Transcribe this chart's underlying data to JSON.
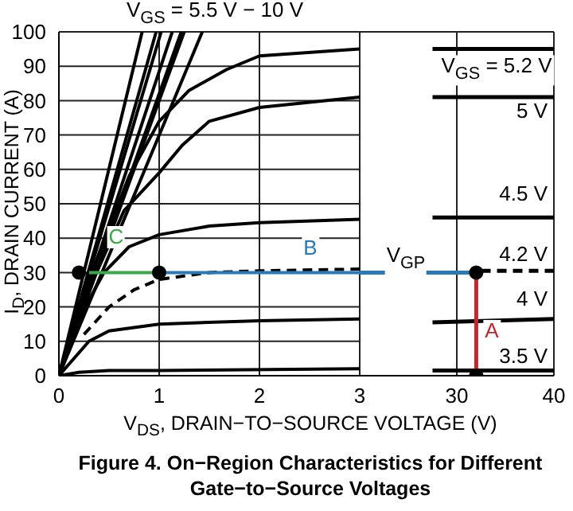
{
  "chart_data": [
    {
      "type": "line",
      "title": "Figure 4. On−Region Characteristics for Different Gate−to−Source Voltages",
      "xlabel": "V$_{DS}$, DRAIN−TO−SOURCE VOLTAGE (V)",
      "ylabel": "I$_{D}$, DRAIN CURRENT (A)",
      "annotations": [
        "V$_{GS}$ = 5.5 V − 10 V",
        "B",
        "C"
      ],
      "xlim": [
        0,
        3
      ],
      "xticks": [
        0,
        1,
        2,
        3
      ],
      "ylim": [
        0,
        100
      ],
      "yticks": [
        0,
        10,
        20,
        30,
        40,
        50,
        60,
        70,
        80,
        90,
        100
      ],
      "grid": true,
      "series": [
        {
          "color": "#000000",
          "x": [
            0,
            0.83
          ],
          "values": [
            0,
            100
          ]
        },
        {
          "color": "#000000",
          "x": [
            0,
            0.97
          ],
          "values": [
            0,
            100
          ]
        },
        {
          "color": "#000000",
          "x": [
            0,
            1.02
          ],
          "values": [
            0,
            100
          ]
        },
        {
          "color": "#000000",
          "x": [
            0,
            1.13
          ],
          "values": [
            0,
            100
          ]
        },
        {
          "color": "#000000",
          "x": [
            0,
            1.22
          ],
          "values": [
            0,
            100
          ]
        },
        {
          "color": "#000000",
          "x": [
            0,
            1.25
          ],
          "values": [
            0,
            100
          ]
        },
        {
          "color": "#000000",
          "x": [
            0,
            1.43
          ],
          "values": [
            0,
            100
          ]
        },
        {
          "color": "#000000",
          "x": [
            0,
            0.3,
            0.7,
            1,
            1.3,
            1.67,
            2,
            3
          ],
          "values": [
            0,
            28,
            58,
            74,
            83,
            89,
            93,
            95
          ]
        },
        {
          "color": "#000000",
          "x": [
            0,
            0.3,
            0.65,
            1,
            1.23,
            1.5,
            2,
            3
          ],
          "values": [
            0,
            25,
            48,
            59,
            67,
            74,
            78,
            81
          ]
        },
        {
          "color": "#000000",
          "x": [
            0,
            0.2,
            0.3,
            0.45,
            0.7,
            1,
            1.5,
            2,
            3
          ],
          "values": [
            0,
            15,
            22,
            30,
            37.5,
            41,
            43.5,
            44.5,
            45.5
          ]
        },
        {
          "color": "#000000",
          "line_style": "dashed",
          "x": [
            0.25,
            0.5,
            0.75,
            1,
            1.5,
            2,
            3
          ],
          "values": [
            12,
            20,
            25,
            28,
            30,
            30.5,
            31
          ]
        },
        {
          "color": "#000000",
          "x": [
            0,
            0.3,
            0.5,
            1,
            2,
            3
          ],
          "values": [
            0,
            10,
            13,
            15,
            16,
            16.5
          ]
        },
        {
          "color": "#000000",
          "x": [
            0,
            0.2,
            0.5,
            1,
            3
          ],
          "values": [
            0,
            1,
            1.5,
            1.5,
            2
          ]
        },
        {
          "color": "#2a7ab8",
          "x": [
            3,
            1
          ],
          "values": [
            30,
            30
          ]
        },
        {
          "color": "#3aa84a",
          "x": [
            1,
            0.3
          ],
          "values": [
            30,
            30
          ]
        },
        {
          "type": "scatter",
          "color": "#000000",
          "x": [
            0.2,
            1
          ],
          "values": [
            30,
            30
          ]
        }
      ]
    },
    {
      "type": "line",
      "annotations": [
        "V$_{GS}$ = 5.2 V",
        "5 V",
        "4.5 V",
        "4.2 V",
        "4 V",
        "3.5 V",
        "V$_{GP}$",
        "A"
      ],
      "xlim": [
        20,
        40
      ],
      "xticks": [
        30,
        40
      ],
      "ylim": [
        0,
        100
      ],
      "yticks": [
        0,
        10,
        20,
        30,
        40,
        50,
        60,
        70,
        80,
        90,
        100
      ],
      "tick_labels": "x",
      "grid": true,
      "series": [
        {
          "color": "#000000",
          "x": [
            27.5,
            40
          ],
          "values": [
            95,
            95
          ]
        },
        {
          "color": "#000000",
          "x": [
            27.5,
            40
          ],
          "values": [
            81,
            81
          ]
        },
        {
          "color": "#000000",
          "x": [
            27.5,
            40
          ],
          "values": [
            46,
            46
          ]
        },
        {
          "color": "#000000",
          "line_style": "dashed",
          "x": [
            32.5,
            40
          ],
          "values": [
            30.5,
            30.5
          ]
        },
        {
          "color": "#000000",
          "x": [
            27.5,
            40
          ],
          "values": [
            15.5,
            16.5
          ]
        },
        {
          "color": "#000000",
          "x": [
            27.5,
            40
          ],
          "values": [
            1.5,
            1.5
          ]
        },
        {
          "color": "#2a7ab8",
          "x": [
            32,
            20
          ],
          "values": [
            30,
            30
          ]
        },
        {
          "color": "#c0282f",
          "x": [
            32,
            32
          ],
          "values": [
            0,
            30
          ]
        },
        {
          "type": "scatter",
          "color": "#000000",
          "x": [
            32,
            32
          ],
          "values": [
            30,
            0
          ]
        }
      ]
    }
  ]
}
